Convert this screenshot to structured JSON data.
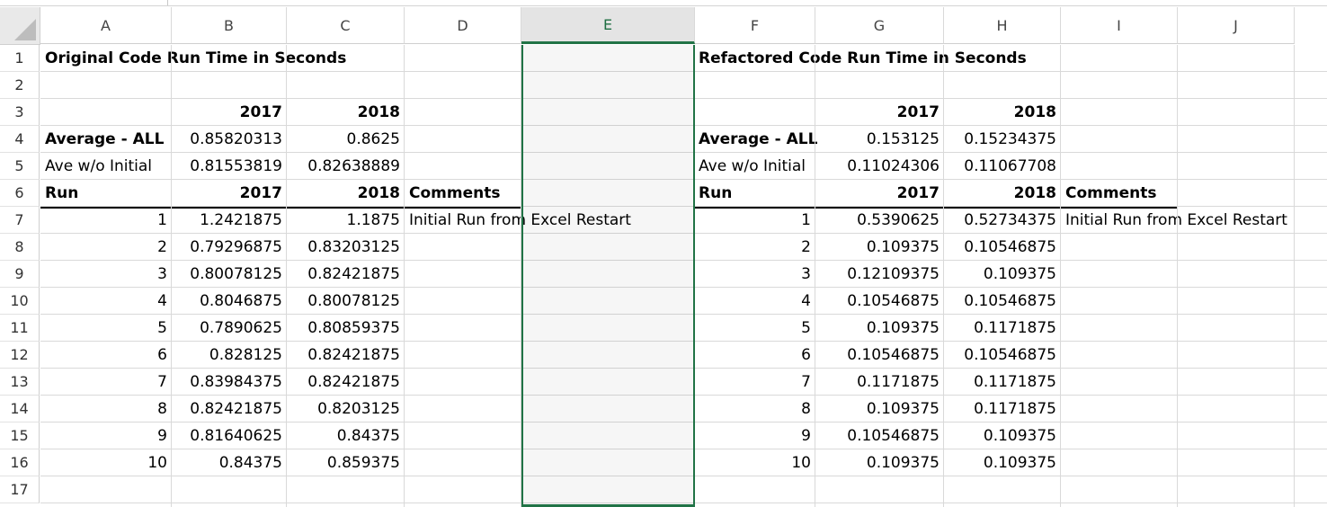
{
  "columns": [
    "A",
    "B",
    "C",
    "D",
    "E",
    "F",
    "G",
    "H",
    "I",
    "J"
  ],
  "rows": [
    "1",
    "2",
    "3",
    "4",
    "5",
    "6",
    "7",
    "8",
    "9",
    "10",
    "11",
    "12",
    "13",
    "14",
    "15",
    "16",
    "17"
  ],
  "selected_column": "E",
  "accent_color": "#217346",
  "left": {
    "title": "Original Code Run Time in Seconds",
    "year1": "2017",
    "year2": "2018",
    "avg_all_label": "Average - ALL",
    "avg_all_2017": "0.85820313",
    "avg_all_2018": "0.8625",
    "avg_wo_label": "Ave w/o Initial",
    "avg_wo_2017": "0.81553819",
    "avg_wo_2018": "0.82638889",
    "run_label": "Run",
    "run_year1": "2017",
    "run_year2": "2018",
    "comments_label": "Comments",
    "first_comment": "Initial Run from Excel Restart",
    "runs": [
      {
        "run": "1",
        "y2017": "1.2421875",
        "y2018": "1.1875"
      },
      {
        "run": "2",
        "y2017": "0.79296875",
        "y2018": "0.83203125"
      },
      {
        "run": "3",
        "y2017": "0.80078125",
        "y2018": "0.82421875"
      },
      {
        "run": "4",
        "y2017": "0.8046875",
        "y2018": "0.80078125"
      },
      {
        "run": "5",
        "y2017": "0.7890625",
        "y2018": "0.80859375"
      },
      {
        "run": "6",
        "y2017": "0.828125",
        "y2018": "0.82421875"
      },
      {
        "run": "7",
        "y2017": "0.83984375",
        "y2018": "0.82421875"
      },
      {
        "run": "8",
        "y2017": "0.82421875",
        "y2018": "0.8203125"
      },
      {
        "run": "9",
        "y2017": "0.81640625",
        "y2018": "0.84375"
      },
      {
        "run": "10",
        "y2017": "0.84375",
        "y2018": "0.859375"
      }
    ]
  },
  "right": {
    "title": "Refactored Code Run Time in Seconds",
    "year1": "2017",
    "year2": "2018",
    "avg_all_label": "Average - ALL",
    "avg_all_2017": "0.153125",
    "avg_all_2018": "0.15234375",
    "avg_wo_label": "Ave w/o Initial",
    "avg_wo_2017": "0.11024306",
    "avg_wo_2018": "0.11067708",
    "run_label": "Run",
    "run_year1": "2017",
    "run_year2": "2018",
    "comments_label": "Comments",
    "first_comment": "Initial Run from Excel Restart",
    "runs": [
      {
        "run": "1",
        "y2017": "0.5390625",
        "y2018": "0.52734375"
      },
      {
        "run": "2",
        "y2017": "0.109375",
        "y2018": "0.10546875"
      },
      {
        "run": "3",
        "y2017": "0.12109375",
        "y2018": "0.109375"
      },
      {
        "run": "4",
        "y2017": "0.10546875",
        "y2018": "0.10546875"
      },
      {
        "run": "5",
        "y2017": "0.109375",
        "y2018": "0.1171875"
      },
      {
        "run": "6",
        "y2017": "0.10546875",
        "y2018": "0.10546875"
      },
      {
        "run": "7",
        "y2017": "0.1171875",
        "y2018": "0.1171875"
      },
      {
        "run": "8",
        "y2017": "0.109375",
        "y2018": "0.1171875"
      },
      {
        "run": "9",
        "y2017": "0.10546875",
        "y2018": "0.109375"
      },
      {
        "run": "10",
        "y2017": "0.109375",
        "y2018": "0.109375"
      }
    ]
  }
}
